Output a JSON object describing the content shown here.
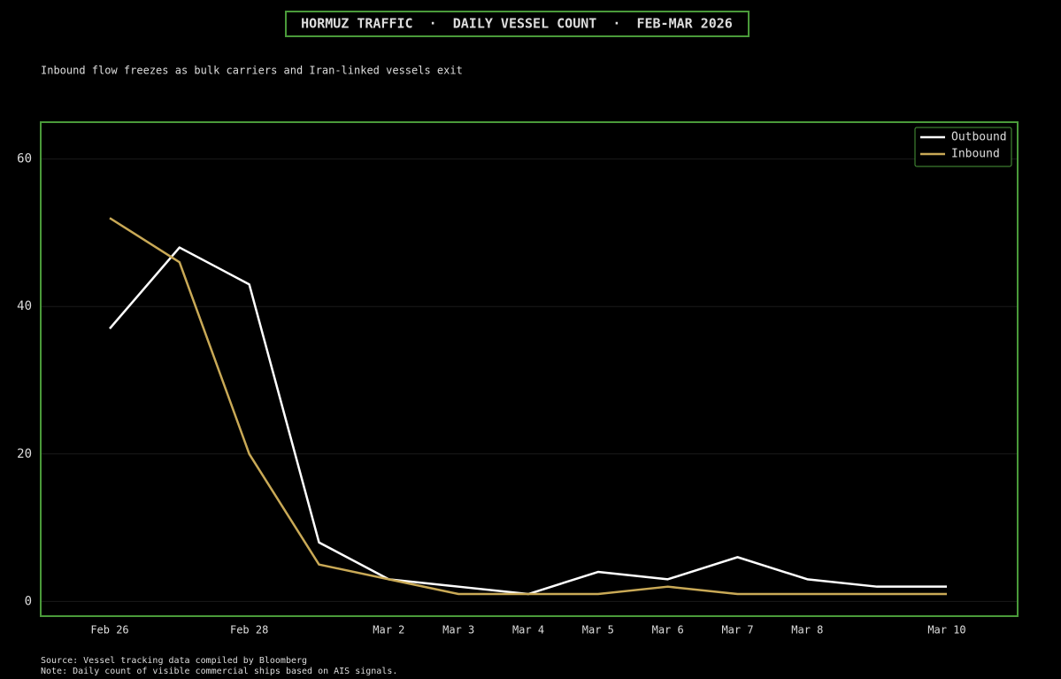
{
  "chart_data": {
    "type": "line",
    "title": "HORMUZ TRAFFIC  ·  DAILY VESSEL COUNT  ·  FEB-MAR 2026",
    "subtitle": "Inbound flow freezes as bulk carriers and Iran-linked vessels exit",
    "source": "Source: Vessel tracking data compiled by Bloomberg",
    "note": "Note: Daily count of visible commercial ships based on AIS signals.",
    "categories": [
      "Feb 26",
      null,
      "Feb 28",
      null,
      "Mar 2",
      "Mar 3",
      "Mar 4",
      "Mar 5",
      "Mar 6",
      "Mar 7",
      "Mar 8",
      null,
      "Mar 10"
    ],
    "series": [
      {
        "name": "Outbound",
        "color": "#ffffff",
        "values": [
          37,
          48,
          43,
          8,
          3,
          2,
          1,
          4,
          3,
          6,
          3,
          2,
          2
        ]
      },
      {
        "name": "Inbound",
        "color": "#c9a956",
        "values": [
          52,
          46,
          20,
          5,
          3,
          1,
          1,
          1,
          2,
          1,
          1,
          1,
          1
        ]
      }
    ],
    "ylim": [
      -2,
      65
    ],
    "yticks": [
      0,
      20,
      40,
      60
    ],
    "grid": true,
    "legend": "upper right"
  }
}
